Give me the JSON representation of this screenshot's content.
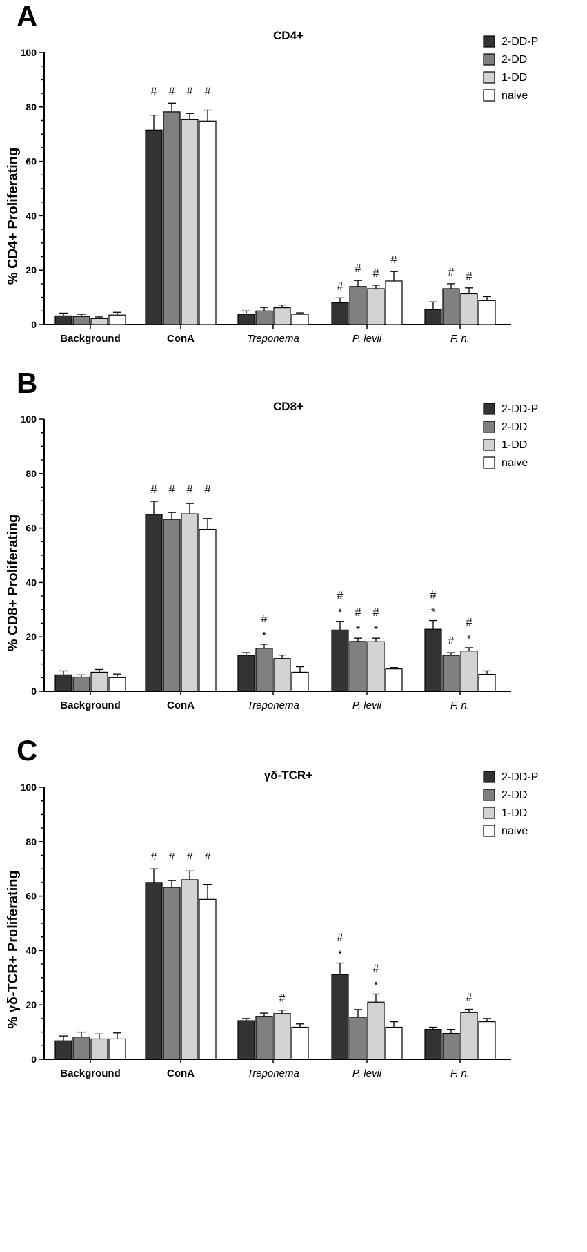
{
  "figure": {
    "legend": [
      {
        "name": "2-DD-P",
        "color": "#333333"
      },
      {
        "name": "2-DD",
        "color": "#808080"
      },
      {
        "name": "1-DD",
        "color": "#d3d3d3"
      },
      {
        "name": "naive",
        "color": "#ffffff"
      }
    ],
    "categories": [
      {
        "label": "Background",
        "italic": false
      },
      {
        "label": "ConA",
        "italic": false
      },
      {
        "label": "Treponema",
        "italic": true
      },
      {
        "label": "P. levii",
        "italic": true
      },
      {
        "label": "F. n.",
        "italic": true
      }
    ]
  },
  "chart_data": [
    {
      "type": "bar",
      "panel": "A",
      "title": "CD4+",
      "ylabel": "% CD4+ Proliferating",
      "ylim": [
        0,
        100
      ],
      "yticks": [
        "0",
        "20",
        "40",
        "60",
        "80",
        "100"
      ],
      "categories": [
        "Background",
        "ConA",
        "Treponema",
        "P. levii",
        "F. n."
      ],
      "series": [
        {
          "name": "2-DD-P",
          "values": [
            3.2,
            71.5,
            3.8,
            8.0,
            5.5
          ],
          "errors": [
            1.0,
            5.5,
            1.2,
            1.8,
            2.8
          ],
          "marks": [
            "",
            "#",
            "",
            "#",
            ""
          ]
        },
        {
          "name": "2-DD",
          "values": [
            3.0,
            78.2,
            5.0,
            14.0,
            13.2
          ],
          "errors": [
            0.8,
            3.2,
            1.3,
            2.2,
            1.8
          ],
          "marks": [
            "",
            "#",
            "",
            "#",
            "#"
          ]
        },
        {
          "name": "1-DD",
          "values": [
            2.2,
            75.3,
            6.2,
            13.2,
            11.3
          ],
          "errors": [
            0.6,
            2.3,
            1.0,
            1.3,
            2.2
          ],
          "marks": [
            "",
            "#",
            "",
            "#",
            "#"
          ]
        },
        {
          "name": "naive",
          "values": [
            3.5,
            74.8,
            3.8,
            16.0,
            8.8
          ],
          "errors": [
            1.0,
            4.0,
            0.5,
            3.5,
            1.5
          ],
          "marks": [
            "",
            "#",
            "",
            "#",
            ""
          ]
        }
      ]
    },
    {
      "type": "bar",
      "panel": "B",
      "title": "CD8+",
      "ylabel": "% CD8+ Proliferating",
      "ylim": [
        0,
        100
      ],
      "yticks": [
        "0",
        "20",
        "40",
        "60",
        "80",
        "100"
      ],
      "categories": [
        "Background",
        "ConA",
        "Treponema",
        "P. levii",
        "F. n."
      ],
      "series": [
        {
          "name": "2-DD-P",
          "values": [
            6.0,
            65.0,
            13.2,
            22.5,
            22.8
          ],
          "errors": [
            1.5,
            4.8,
            1.0,
            3.2,
            3.2
          ],
          "marks": [
            "",
            "#",
            "",
            "#*",
            "#*"
          ]
        },
        {
          "name": "2-DD",
          "values": [
            5.2,
            63.2,
            15.8,
            18.3,
            13.2
          ],
          "errors": [
            0.8,
            2.5,
            1.5,
            1.2,
            1.0
          ],
          "marks": [
            "",
            "#",
            "#*",
            "#*",
            "#"
          ]
        },
        {
          "name": "1-DD",
          "values": [
            7.0,
            65.2,
            12.0,
            18.2,
            14.8
          ],
          "errors": [
            1.0,
            3.8,
            1.3,
            1.3,
            1.2
          ],
          "marks": [
            "",
            "#",
            "",
            "#*",
            "#*"
          ]
        },
        {
          "name": "naive",
          "values": [
            5.0,
            59.5,
            7.0,
            8.2,
            6.2
          ],
          "errors": [
            1.3,
            4.0,
            2.0,
            0.5,
            1.3
          ],
          "marks": [
            "",
            "#",
            "",
            "",
            ""
          ]
        }
      ]
    },
    {
      "type": "bar",
      "panel": "C",
      "title": "γδ-TCR+",
      "ylabel": "% γδ-TCR+ Proliferating",
      "ylim": [
        0,
        100
      ],
      "yticks": [
        "0",
        "20",
        "40",
        "60",
        "80",
        "100"
      ],
      "categories": [
        "Background",
        "ConA",
        "Treponema",
        "P. levii",
        "F. n."
      ],
      "series": [
        {
          "name": "2-DD-P",
          "values": [
            6.8,
            65.0,
            14.2,
            31.2,
            11.0
          ],
          "errors": [
            1.8,
            5.0,
            0.8,
            4.2,
            0.8
          ],
          "marks": [
            "",
            "#",
            "",
            "#*",
            ""
          ]
        },
        {
          "name": "2-DD",
          "values": [
            8.2,
            63.2,
            15.8,
            15.5,
            9.5
          ],
          "errors": [
            1.8,
            2.5,
            1.2,
            2.8,
            1.5
          ],
          "marks": [
            "",
            "#",
            "",
            "",
            ""
          ]
        },
        {
          "name": "1-DD",
          "values": [
            7.5,
            66.0,
            16.8,
            21.0,
            17.2
          ],
          "errors": [
            1.8,
            3.2,
            1.3,
            3.0,
            1.2
          ],
          "marks": [
            "",
            "#",
            "#",
            "#*",
            "#"
          ]
        },
        {
          "name": "naive",
          "values": [
            7.5,
            58.8,
            11.8,
            11.8,
            13.8
          ],
          "errors": [
            2.2,
            5.5,
            1.2,
            2.0,
            1.2
          ],
          "marks": [
            "",
            "#",
            "",
            "",
            ""
          ]
        }
      ]
    }
  ]
}
